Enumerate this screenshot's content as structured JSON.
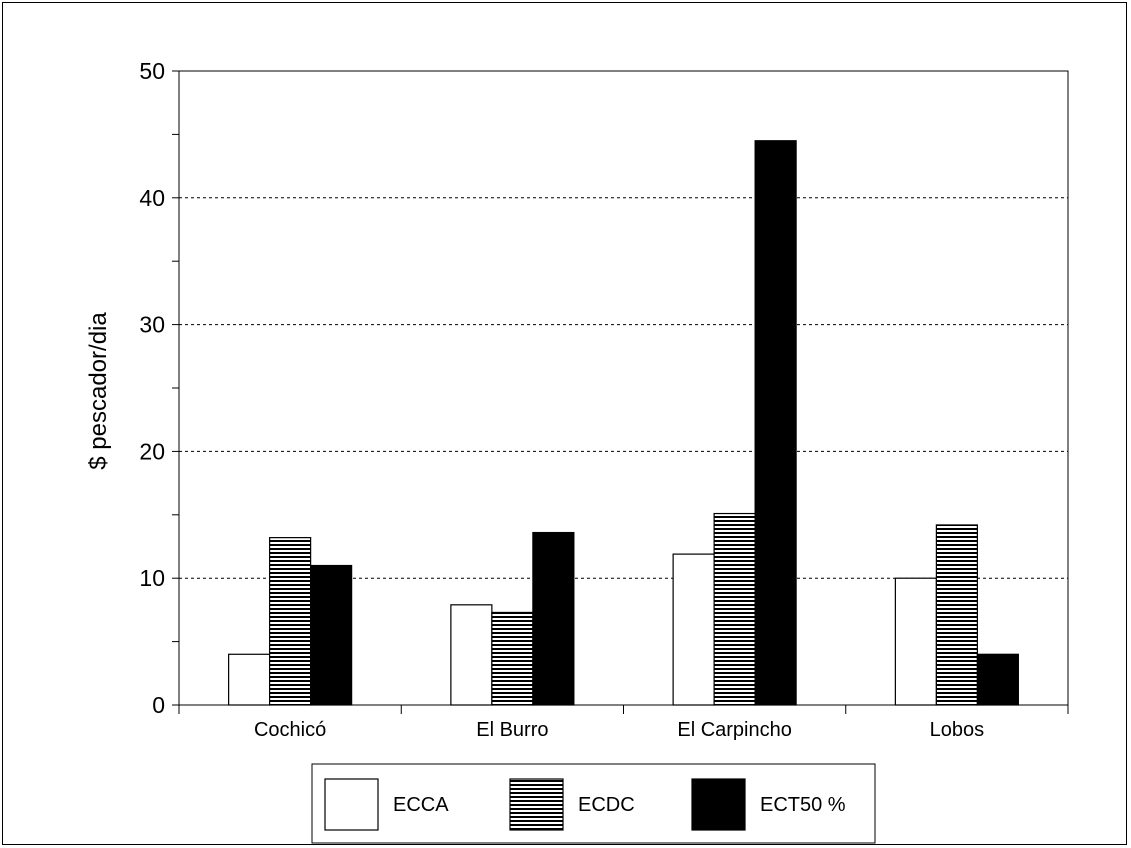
{
  "chart_data": {
    "type": "bar",
    "categories": [
      "Cochicó",
      "El Burro",
      "El Carpincho",
      "Lobos"
    ],
    "series": [
      {
        "name": "ECCA",
        "values": [
          4.0,
          7.9,
          11.9,
          10.0
        ],
        "fill": "white"
      },
      {
        "name": "ECDC",
        "values": [
          13.2,
          7.3,
          15.1,
          14.2
        ],
        "fill": "hatch"
      },
      {
        "name": "ECT50 %",
        "values": [
          11.0,
          13.6,
          44.5,
          4.0
        ],
        "fill": "black"
      }
    ],
    "ylabel": "$ pescador/dia",
    "xlabel": "",
    "title": "",
    "ylim": [
      0,
      50
    ],
    "yticks": [
      "0",
      "10",
      "20",
      "30",
      "40",
      "50"
    ],
    "grid": "horizontal dashed",
    "legend_position": "bottom-center",
    "colors": {
      "bar_outline": "#000000",
      "black_fill": "#000000",
      "white_fill": "#ffffff"
    }
  }
}
